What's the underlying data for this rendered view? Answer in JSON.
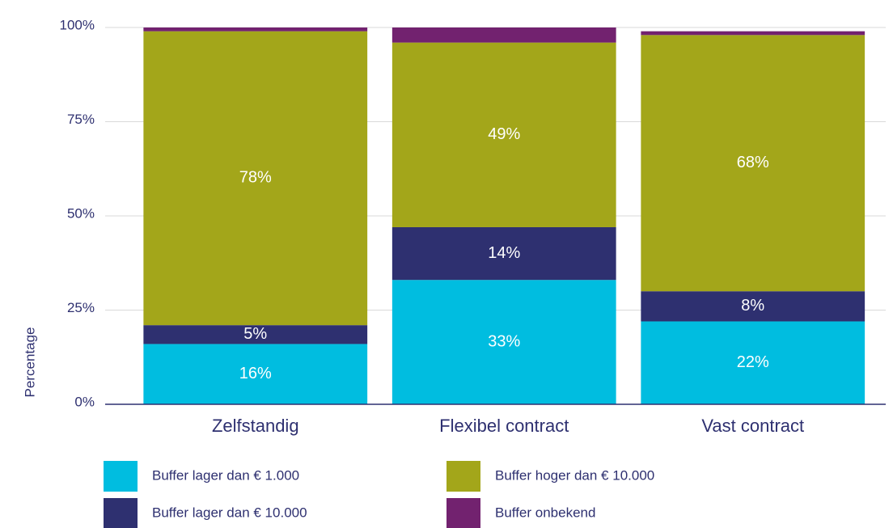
{
  "chart_data": {
    "type": "stacked_bar",
    "y_label": "Percentage",
    "categories": [
      "Zelfstandig",
      "Flexibel contract",
      "Vast contract"
    ],
    "series": [
      {
        "name": "Buffer lager dan € 1.000",
        "color": "#00bde0",
        "values": [
          16,
          33,
          22
        ],
        "value_labels": [
          "16%",
          "33%",
          "22%"
        ]
      },
      {
        "name": "Buffer lager dan € 10.000",
        "color": "#2e3070",
        "values": [
          5,
          14,
          8
        ],
        "value_labels": [
          "5%",
          "14%",
          "8%"
        ]
      },
      {
        "name": "Buffer hoger dan € 10.000",
        "color": "#a3a61a",
        "values": [
          78,
          49,
          68
        ],
        "value_labels": [
          "78%",
          "49%",
          "68%"
        ]
      },
      {
        "name": "Buffer onbekend",
        "color": "#72226f",
        "values": [
          1,
          4,
          1
        ]
      }
    ],
    "ylim": [
      0,
      100
    ],
    "yticks": [
      {
        "value": 0,
        "label": "0%"
      },
      {
        "value": 25,
        "label": "25%"
      },
      {
        "value": 50,
        "label": "50%"
      },
      {
        "value": 75,
        "label": "75%"
      },
      {
        "value": 100,
        "label": "100%"
      }
    ],
    "grid": true
  }
}
